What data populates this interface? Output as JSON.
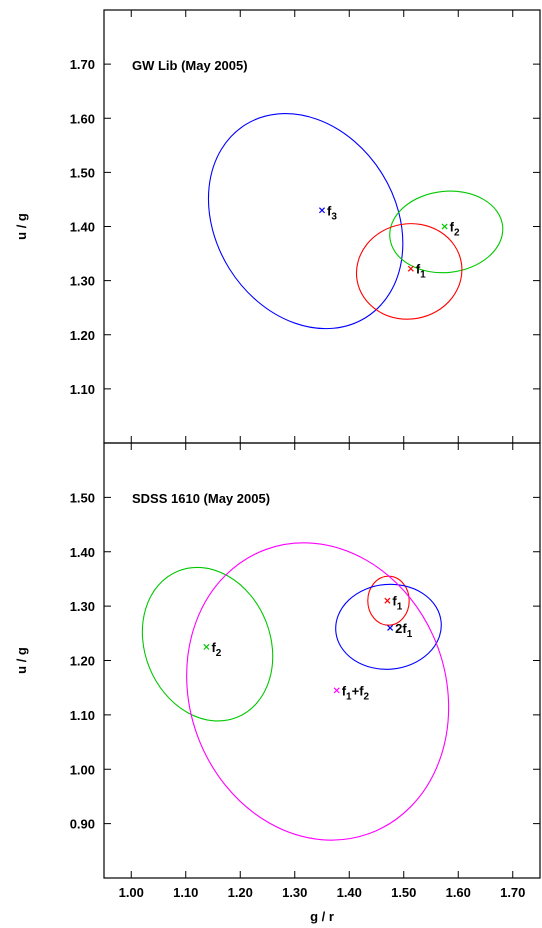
{
  "chart_data": {
    "type": "scatter",
    "xlabel": "g / r",
    "ylabel": "u / g",
    "xlim": [
      0.95,
      1.75
    ],
    "x_ticks": [
      "1.00",
      "1.10",
      "1.20",
      "1.30",
      "1.40",
      "1.50",
      "1.60",
      "1.70"
    ],
    "panels": [
      {
        "title": "GW Lib (May 2005)",
        "ylabel": "u / g",
        "ylim": [
          1.0,
          1.8
        ],
        "y_ticks": [
          "1.10",
          "1.20",
          "1.30",
          "1.40",
          "1.50",
          "1.60",
          "1.70"
        ],
        "points": [
          {
            "base": "f",
            "sub": "3",
            "x": 1.35,
            "y": 1.43,
            "color": "#0000ff",
            "ellipse": {
              "cx": 1.32,
              "cy": 1.41,
              "rx": 0.165,
              "ry": 0.21,
              "angle": -32
            }
          },
          {
            "base": "f",
            "sub": "2",
            "x": 1.575,
            "y": 1.4,
            "color": "#00c800",
            "ellipse": {
              "cx": 1.578,
              "cy": 1.39,
              "rx": 0.104,
              "ry": 0.075,
              "angle": -6
            }
          },
          {
            "base": "f",
            "sub": "1",
            "x": 1.513,
            "y": 1.322,
            "color": "#ff0000",
            "ellipse": {
              "cx": 1.51,
              "cy": 1.317,
              "rx": 0.097,
              "ry": 0.088,
              "angle": -10
            }
          }
        ]
      },
      {
        "title": "SDSS 1610 (May 2005)",
        "ylabel": "u / g",
        "ylim": [
          0.8,
          1.6
        ],
        "y_ticks": [
          "0.90",
          "1.00",
          "1.10",
          "1.20",
          "1.30",
          "1.40",
          "1.50"
        ],
        "points": [
          {
            "base": "f",
            "sub": "1",
            "x": 1.47,
            "y": 1.31,
            "color": "#ff0000",
            "ellipse": {
              "cx": 1.472,
              "cy": 1.31,
              "rx": 0.038,
              "ry": 0.045,
              "angle": 0
            }
          },
          {
            "base": "2f",
            "sub": "1",
            "x": 1.475,
            "y": 1.26,
            "color": "#0000ff",
            "ellipse": {
              "cx": 1.472,
              "cy": 1.262,
              "rx": 0.097,
              "ry": 0.078,
              "angle": -5
            }
          },
          {
            "base": "f",
            "sub": "2",
            "x": 1.138,
            "y": 1.225,
            "color": "#00c800",
            "ellipse": {
              "cx": 1.14,
              "cy": 1.23,
              "rx": 0.115,
              "ry": 0.145,
              "angle": -22
            }
          },
          {
            "base": "f",
            "sub": "1+f",
            "sub2": "2",
            "x": 1.377,
            "y": 1.145,
            "color": "#ff00ff",
            "ellipse": {
              "cx": 1.342,
              "cy": 1.143,
              "rx": 0.235,
              "ry": 0.278,
              "angle": -20
            }
          }
        ]
      }
    ]
  }
}
